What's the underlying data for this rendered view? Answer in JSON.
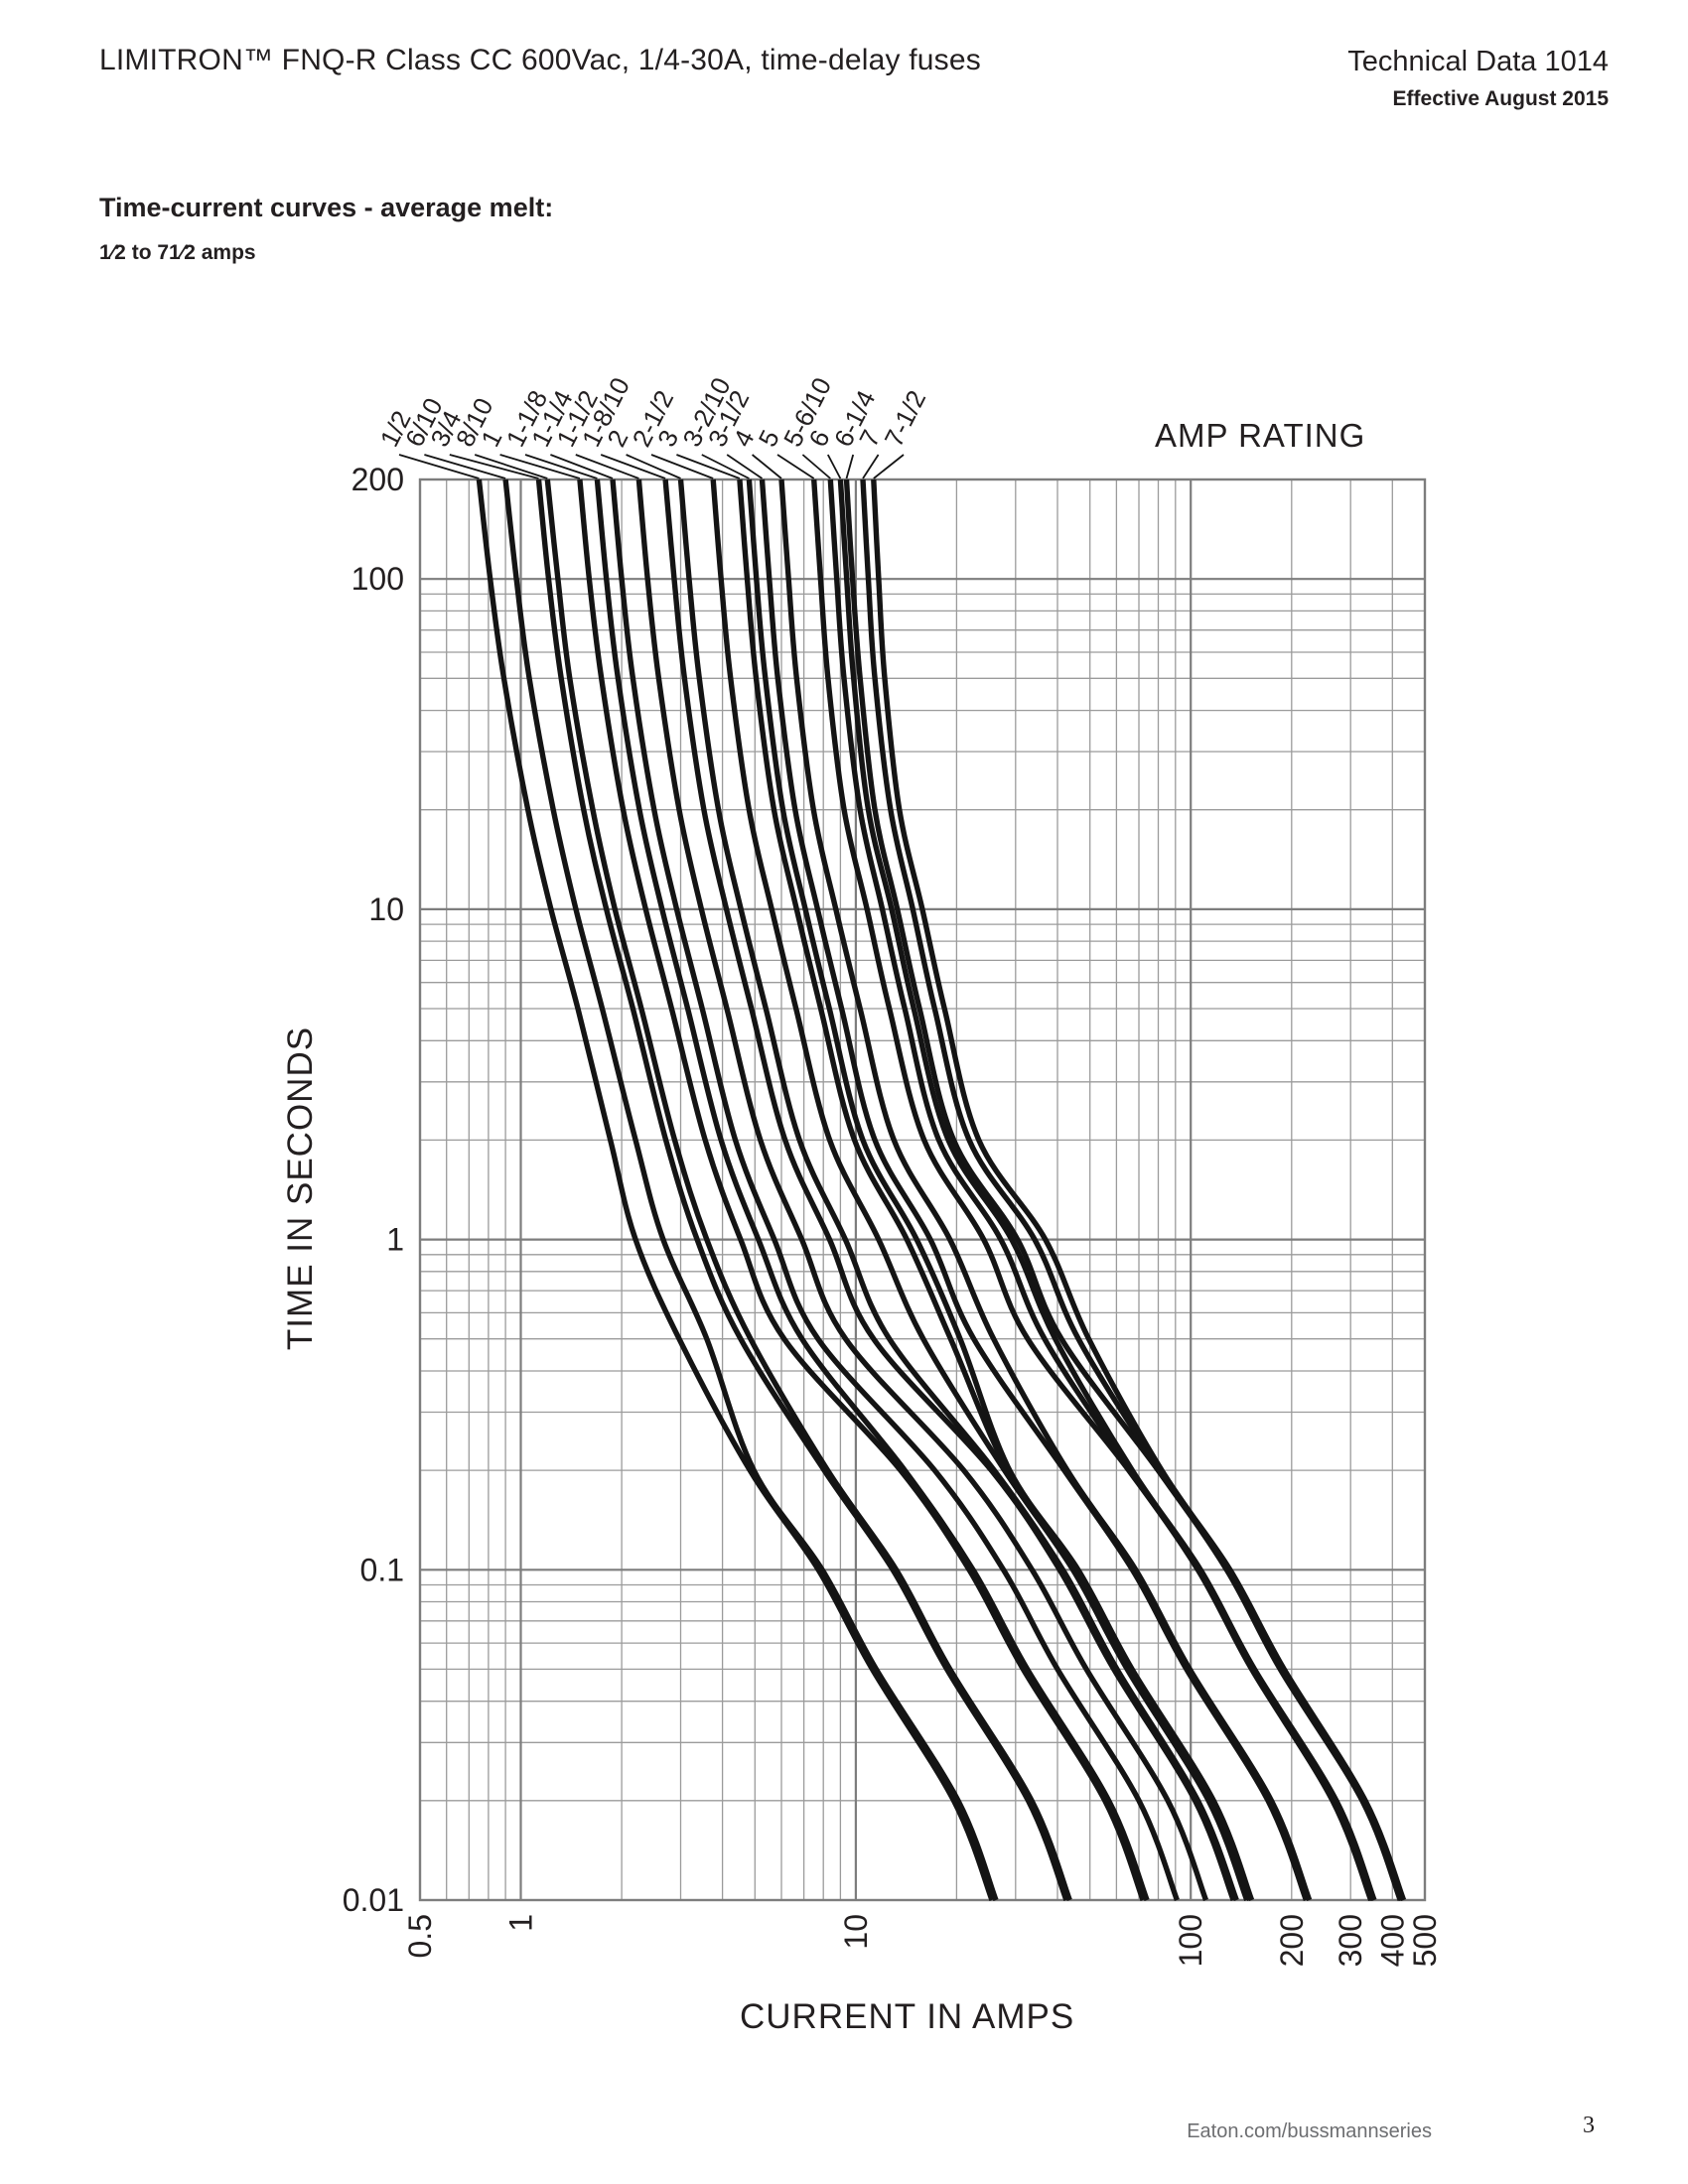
{
  "page": {
    "header_title": "LIMITRON™ FNQ-R Class CC 600Vac, 1/4-30A, time-delay fuses",
    "doc_number": "Technical Data 1014",
    "doc_effective": "Effective August 2015",
    "section_title": "Time-current curves - average melt:",
    "section_subtitle": "1⁄2 to 71⁄2 amps",
    "footer_url": "Eaton.com/bussmannseries",
    "footer_page": "3"
  },
  "chart_data": {
    "type": "line",
    "title": "AMP RATING",
    "xlabel": "CURRENT IN AMPS",
    "ylabel": "TIME IN SECONDS",
    "x_scale": "log",
    "y_scale": "log",
    "xlim": [
      0.5,
      500
    ],
    "ylim": [
      0.01,
      200
    ],
    "grid": "on",
    "x_ticks": [
      {
        "value": 0.5,
        "label": "0.5"
      },
      {
        "value": 1,
        "label": "1"
      },
      {
        "value": 10,
        "label": "10"
      },
      {
        "value": 100,
        "label": "100"
      },
      {
        "value": 200,
        "label": "200"
      },
      {
        "value": 300,
        "label": "300"
      },
      {
        "value": 400,
        "label": "400"
      },
      {
        "value": 500,
        "label": "500"
      }
    ],
    "y_ticks": [
      {
        "value": 200,
        "label": "200"
      },
      {
        "value": 100,
        "label": "100"
      },
      {
        "value": 10,
        "label": "10"
      },
      {
        "value": 1,
        "label": "1"
      },
      {
        "value": 0.1,
        "label": "0.1"
      },
      {
        "value": 0.01,
        "label": "0.01"
      }
    ],
    "x_major_grid": [
      1,
      10,
      100
    ],
    "x_minor_grid": [
      0.6,
      0.7,
      0.8,
      0.9,
      2,
      3,
      4,
      5,
      6,
      7,
      8,
      9,
      20,
      30,
      40,
      50,
      60,
      70,
      80,
      90,
      200,
      300,
      400
    ],
    "y_major_grid": [
      0.1,
      1,
      10,
      100
    ],
    "y_minor_grid": [
      0.02,
      0.03,
      0.04,
      0.05,
      0.06,
      0.07,
      0.08,
      0.09,
      0.2,
      0.3,
      0.4,
      0.5,
      0.6,
      0.7,
      0.8,
      0.9,
      2,
      3,
      4,
      5,
      6,
      7,
      8,
      9,
      20,
      30,
      40,
      50,
      60,
      70,
      80,
      90
    ],
    "times_seconds": [
      200,
      100,
      50,
      20,
      10,
      5,
      2,
      1,
      0.5,
      0.2,
      0.1,
      0.05,
      0.02,
      0.01
    ],
    "series": [
      {
        "name": "1/2",
        "rating_amps": 0.5,
        "amps": [
          0.75,
          0.81,
          0.89,
          1.05,
          1.23,
          1.48,
          1.85,
          2.2,
          2.97,
          4.83,
          7.73,
          11.2,
          19.6,
          25.5
        ]
      },
      {
        "name": "6/10",
        "rating_amps": 0.6,
        "amps": [
          0.9,
          0.97,
          1.06,
          1.25,
          1.46,
          1.75,
          2.2,
          2.66,
          3.59,
          4.96,
          7.94,
          11.5,
          20.2,
          26.2
        ]
      },
      {
        "name": "3/4",
        "rating_amps": 0.75,
        "amps": [
          1.13,
          1.21,
          1.32,
          1.54,
          1.8,
          2.16,
          2.71,
          3.36,
          4.53,
          8.05,
          12.9,
          18.7,
          32.7,
          42.5
        ]
      },
      {
        "name": "8/10",
        "rating_amps": 0.8,
        "amps": [
          1.2,
          1.29,
          1.4,
          1.64,
          1.91,
          2.29,
          2.88,
          3.59,
          4.85,
          8.24,
          13.2,
          19.1,
          33.5,
          43.5
        ]
      },
      {
        "name": "1",
        "rating_amps": 1,
        "amps": [
          1.5,
          1.6,
          1.74,
          2.02,
          2.36,
          2.82,
          3.55,
          4.53,
          6.11,
          13.6,
          21.8,
          31.6,
          55.4,
          72
        ]
      },
      {
        "name": "1-1/8",
        "rating_amps": 1.125,
        "amps": [
          1.69,
          1.8,
          1.95,
          2.26,
          2.64,
          3.15,
          3.96,
          5.12,
          6.91,
          14.0,
          22.4,
          32.5,
          56.9,
          74
        ]
      },
      {
        "name": "1-1/4",
        "rating_amps": 1.25,
        "amps": [
          1.88,
          2.0,
          2.16,
          2.5,
          2.92,
          3.48,
          4.37,
          5.71,
          7.71,
          17.2,
          27.6,
          40.0,
          70,
          91
        ]
      },
      {
        "name": "1-1/2",
        "rating_amps": 1.5,
        "amps": [
          2.25,
          2.39,
          2.58,
          2.97,
          3.46,
          4.12,
          5.19,
          6.9,
          9.32,
          21.0,
          33.6,
          48.8,
          85.4,
          111
        ]
      },
      {
        "name": "1-8/10",
        "rating_amps": 1.8,
        "amps": [
          2.7,
          2.87,
          3.08,
          3.52,
          4.11,
          4.88,
          6.15,
          8.35,
          11.3,
          25.4,
          40.6,
          58.9,
          103,
          134
        ]
      },
      {
        "name": "2",
        "rating_amps": 2,
        "amps": [
          3.0,
          3.18,
          3.41,
          3.89,
          4.54,
          5.39,
          6.79,
          9.31,
          12.6,
          25.9,
          41.5,
          60.2,
          105,
          137
        ]
      },
      {
        "name": "2-1/2",
        "rating_amps": 2.5,
        "amps": [
          3.75,
          3.96,
          4.23,
          4.8,
          5.61,
          6.63,
          8.36,
          11.7,
          15.9,
          27.8,
          44.5,
          64.6,
          113,
          147
        ]
      },
      {
        "name": "3",
        "rating_amps": 3,
        "amps": [
          4.5,
          4.74,
          5.04,
          5.7,
          6.66,
          7.86,
          9.91,
          14.2,
          19.2,
          28.4,
          45.5,
          65.9,
          115,
          150
        ]
      },
      {
        "name": "3-2/10",
        "rating_amps": 3.2,
        "amps": [
          4.8,
          5.05,
          5.37,
          6.06,
          7.07,
          8.34,
          10.5,
          15.2,
          20.5,
          28.8,
          46.1,
          66.8,
          117,
          152
        ]
      },
      {
        "name": "3-1/2",
        "rating_amps": 3.5,
        "amps": [
          5.25,
          5.52,
          5.85,
          6.59,
          7.69,
          9.07,
          11.4,
          16.7,
          22.5,
          41.9,
          67.0,
          97.1,
          170,
          221
        ]
      },
      {
        "name": "4",
        "rating_amps": 4,
        "amps": [
          6.0,
          6.3,
          6.66,
          7.48,
          8.72,
          10.3,
          13.0,
          19.1,
          25.8,
          42.8,
          68.5,
          99.3,
          174,
          226
        ]
      },
      {
        "name": "5",
        "rating_amps": 5,
        "amps": [
          7.5,
          7.85,
          8.26,
          9.23,
          10.8,
          12.6,
          16.0,
          24.1,
          32.6,
          65.3,
          105,
          152,
          265,
          345
        ]
      },
      {
        "name": "5-6/10",
        "rating_amps": 5.6,
        "amps": [
          8.4,
          8.77,
          9.22,
          10.3,
          12.0,
          14.0,
          17.7,
          27.1,
          36.6,
          66.1,
          106,
          153,
          268,
          349
        ]
      },
      {
        "name": "6",
        "rating_amps": 6,
        "amps": [
          9.0,
          9.39,
          9.85,
          10.9,
          12.8,
          14.9,
          18.9,
          29.2,
          39.4,
          66.9,
          107,
          155,
          272,
          353
        ]
      },
      {
        "name": "6-1/4",
        "rating_amps": 6.25,
        "amps": [
          9.38,
          9.78,
          10.3,
          11.4,
          13.3,
          15.5,
          19.6,
          30.4,
          41.1,
          79.9,
          128,
          185,
          325,
          422
        ]
      },
      {
        "name": "7",
        "rating_amps": 7,
        "amps": [
          10.5,
          10.9,
          11.4,
          12.7,
          14.8,
          17.2,
          21.8,
          34.2,
          46.2,
          80.9,
          129,
          188,
          328,
          427
        ]
      },
      {
        "name": "7-1/2",
        "rating_amps": 7.5,
        "amps": [
          11.3,
          11.7,
          12.2,
          13.5,
          15.8,
          18.4,
          23.3,
          36.8,
          49.6,
          81.9,
          131,
          190,
          332,
          432
        ]
      }
    ],
    "legend_position": "top-labels-with-leader-lines"
  },
  "colors": {
    "curve": "#141414",
    "grid_minor": "#9b9b9b",
    "grid_major": "#7d7d7d",
    "border": "#7d7d7d",
    "text": "#231f20",
    "footer_gray": "#6d6e71"
  }
}
